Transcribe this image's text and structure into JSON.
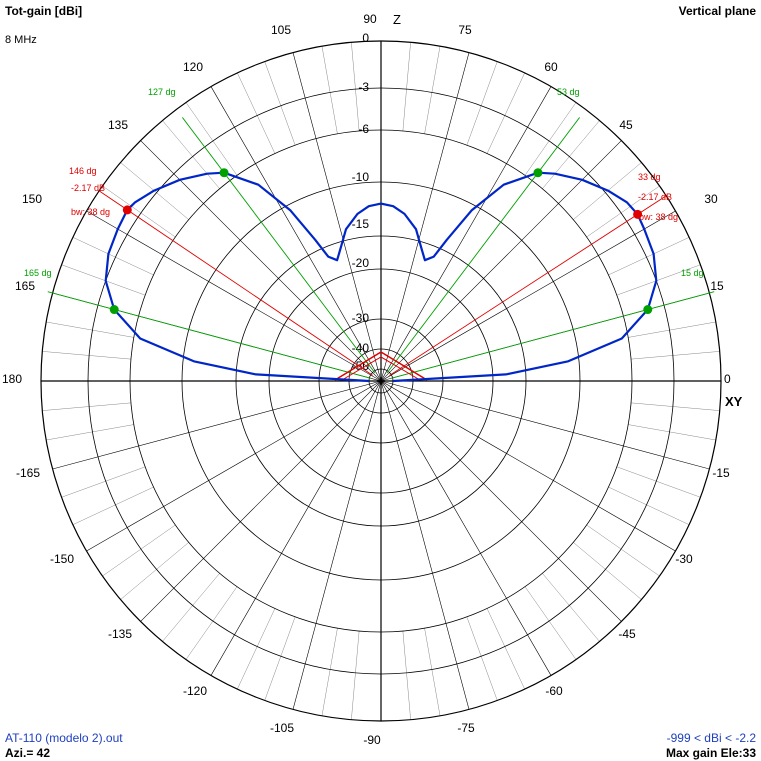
{
  "header": {
    "title": "Tot-gain [dBi]",
    "frequency": "8 MHz",
    "plane": "Vertical plane"
  },
  "footer": {
    "file": "AT-110 (modelo 2).out",
    "azimuth": "Azi.= 42",
    "range": "-999 < dBi < -2.2",
    "max_gain": "Max gain Ele:33"
  },
  "chart_data": {
    "type": "polar",
    "title": "Tot-gain [dBi]",
    "plane": "Vertical plane",
    "frequency": "8 MHz",
    "axis_labels": {
      "vertical": "Z",
      "horizontal": "XY"
    },
    "angle_ticks_deg": [
      0,
      15,
      30,
      45,
      60,
      75,
      90,
      105,
      120,
      135,
      150,
      165,
      180,
      -165,
      -150,
      -135,
      -120,
      -105,
      -90,
      -75,
      -60,
      -45,
      -30,
      -15
    ],
    "radial_tick_labels_dB": [
      0,
      -3,
      -6,
      -10,
      -15,
      -20,
      -30,
      -40,
      -50
    ],
    "series": [
      {
        "name": "Tot-gain",
        "color": "#0026c8",
        "points": [
          {
            "angle": 0,
            "gain_dB": -50
          },
          {
            "angle": 3,
            "gain_dB": -18
          },
          {
            "angle": 6,
            "gain_dB": -11
          },
          {
            "angle": 10,
            "gain_dB": -6.5
          },
          {
            "angle": 15,
            "gain_dB": -4.2
          },
          {
            "angle": 20,
            "gain_dB": -3.0
          },
          {
            "angle": 25,
            "gain_dB": -2.5
          },
          {
            "angle": 30,
            "gain_dB": -2.3
          },
          {
            "angle": 33,
            "gain_dB": -2.17
          },
          {
            "angle": 36,
            "gain_dB": -2.3
          },
          {
            "angle": 40,
            "gain_dB": -2.8
          },
          {
            "angle": 45,
            "gain_dB": -3.6
          },
          {
            "angle": 50,
            "gain_dB": -4.6
          },
          {
            "angle": 53,
            "gain_dB": -5.3
          },
          {
            "angle": 58,
            "gain_dB": -7.5
          },
          {
            "angle": 62,
            "gain_dB": -10.5
          },
          {
            "angle": 65,
            "gain_dB": -14
          },
          {
            "angle": 67,
            "gain_dB": -16.5
          },
          {
            "angle": 70,
            "gain_dB": -17.5
          },
          {
            "angle": 73,
            "gain_dB": -16
          },
          {
            "angle": 77,
            "gain_dB": -14
          },
          {
            "angle": 82,
            "gain_dB": -12.8
          },
          {
            "angle": 86,
            "gain_dB": -12.2
          },
          {
            "angle": 90,
            "gain_dB": -12
          },
          {
            "angle": 94,
            "gain_dB": -12.2
          },
          {
            "angle": 98,
            "gain_dB": -12.8
          },
          {
            "angle": 103,
            "gain_dB": -14
          },
          {
            "angle": 107,
            "gain_dB": -16
          },
          {
            "angle": 110,
            "gain_dB": -17.5
          },
          {
            "angle": 113,
            "gain_dB": -16.5
          },
          {
            "angle": 115,
            "gain_dB": -14
          },
          {
            "angle": 118,
            "gain_dB": -10.5
          },
          {
            "angle": 122,
            "gain_dB": -7.5
          },
          {
            "angle": 127,
            "gain_dB": -5.3
          },
          {
            "angle": 130,
            "gain_dB": -4.6
          },
          {
            "angle": 135,
            "gain_dB": -3.6
          },
          {
            "angle": 140,
            "gain_dB": -2.8
          },
          {
            "angle": 144,
            "gain_dB": -2.3
          },
          {
            "angle": 146,
            "gain_dB": -2.17
          },
          {
            "angle": 150,
            "gain_dB": -2.3
          },
          {
            "angle": 155,
            "gain_dB": -2.5
          },
          {
            "angle": 160,
            "gain_dB": -3.0
          },
          {
            "angle": 165,
            "gain_dB": -4.2
          },
          {
            "angle": 170,
            "gain_dB": -6.5
          },
          {
            "angle": 174,
            "gain_dB": -11
          },
          {
            "angle": 177,
            "gain_dB": -18
          },
          {
            "angle": 180,
            "gain_dB": -50
          }
        ]
      }
    ],
    "markers": [
      {
        "kind": "max",
        "angle": 146,
        "gain_dB": -2.17,
        "color": "#e00000"
      },
      {
        "kind": "max",
        "angle": 33,
        "gain_dB": -2.17,
        "color": "#e00000"
      },
      {
        "kind": "half_power",
        "angle": 127,
        "gain_dB": -5.3,
        "color": "#00a000"
      },
      {
        "kind": "half_power",
        "angle": 53,
        "gain_dB": -5.3,
        "color": "#00a000"
      },
      {
        "kind": "half_power",
        "angle": 165,
        "gain_dB": -4.2,
        "color": "#00a000"
      },
      {
        "kind": "half_power",
        "angle": 15,
        "gain_dB": -4.2,
        "color": "#00a000"
      }
    ],
    "annotations": {
      "left_max_angle": "146 dg",
      "left_max_gain": "-2.17 dB",
      "left_bw": "bw: 38 dg",
      "right_max_angle": "33 dg",
      "right_max_gain": "-2.17 dB",
      "right_bw": "bw: 38 dg",
      "green_127": "127 dg",
      "green_53": "53 dg",
      "green_165": "165 dg",
      "green_15": "15 dg"
    },
    "colors": {
      "pattern": "#0026c8",
      "max_marker": "#e00000",
      "half_power": "#00a000",
      "grid": "#000000"
    }
  }
}
